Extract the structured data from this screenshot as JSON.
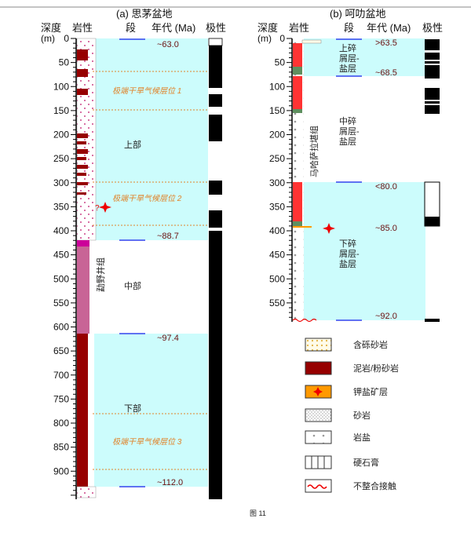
{
  "panel_a": {
    "title": "(a) 思茅盆地",
    "headers": {
      "depth": "深度",
      "depth_unit": "(m)",
      "lithology": "岩性",
      "segment": "段",
      "age": "年代 (Ma)",
      "polarity": "极性"
    },
    "depth_labels": [
      "0",
      "50",
      "100",
      "150",
      "200",
      "250",
      "300",
      "350",
      "400",
      "450",
      "500",
      "550",
      "600",
      "650",
      "700",
      "750",
      "800",
      "850",
      "900"
    ],
    "ages": [
      "~63.0",
      "~88.7",
      "~97.4",
      "~112.0"
    ],
    "segments": [
      "上部",
      "中部",
      "下部"
    ],
    "formation": "勐野井组",
    "climate_horizons": [
      "极端干旱气候层位 1",
      "极端干旱气候层位 2",
      "极端干旱气候层位 3"
    ],
    "question_mark": "?"
  },
  "panel_b": {
    "title": "(b) 呵叻盆地",
    "headers": {
      "depth": "深度",
      "depth_unit": "(m)",
      "lithology": "岩性",
      "segment": "段",
      "age": "年代 (Ma)",
      "polarity": "极性"
    },
    "depth_labels": [
      "0",
      "50",
      "100",
      "150",
      "200",
      "250",
      "300",
      "350",
      "400",
      "450",
      "500",
      "550"
    ],
    "ages": [
      ">63.5",
      "~68.5",
      "<80.0",
      "~85.0",
      "~92.0"
    ],
    "segments": [
      [
        "上碎",
        "屑层-",
        "盐层"
      ],
      [
        "中碎",
        "屑层-",
        "盐层"
      ],
      [
        "下碎",
        "屑层-",
        "盐层"
      ]
    ],
    "formation": "马哈萨拉堪组"
  },
  "legend": [
    {
      "icon": "pebbly-sandstone",
      "label": "含砾砂岩"
    },
    {
      "icon": "mudstone-siltstone",
      "label": "泥岩/粉砂岩"
    },
    {
      "icon": "potash-ore-layer",
      "label": "钾盐矿层"
    },
    {
      "icon": "sandstone",
      "label": "砂岩"
    },
    {
      "icon": "rock-salt",
      "label": "岩盐"
    },
    {
      "icon": "anhydrite",
      "label": "硬石膏"
    },
    {
      "icon": "unconformity",
      "label": "不整合接触"
    }
  ],
  "caption": "图 11",
  "colors": {
    "band": "#ccfcfc",
    "mudstone": "#960000",
    "red_bed": "#ff3333",
    "green": "#5f8f5f",
    "pink": "#c86496",
    "magenta": "#cc0099",
    "potash": "#ff9900",
    "boundary": "#3344ee",
    "climate": "#e0832a",
    "age": "#6b1010"
  }
}
